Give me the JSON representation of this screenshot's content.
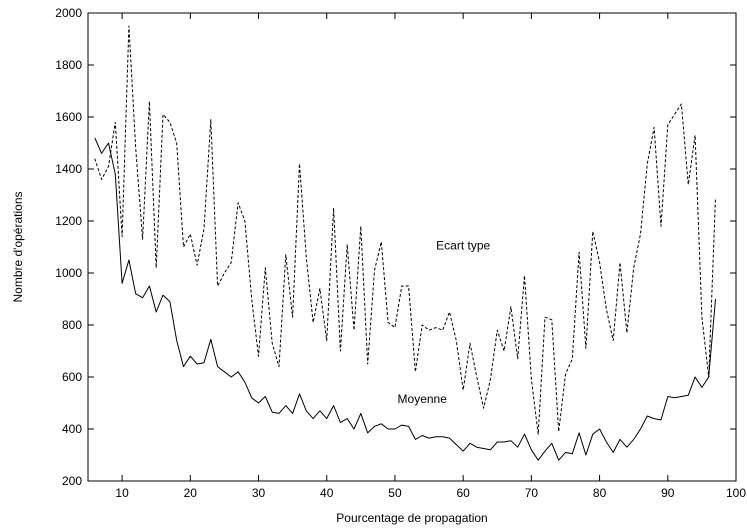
{
  "chart_data": {
    "type": "line",
    "title": "",
    "xlabel": "Pourcentage de propagation",
    "ylabel": "Nombre d'opérations",
    "xlim": [
      5,
      100
    ],
    "ylim": [
      200,
      2000
    ],
    "xticks": [
      10,
      20,
      30,
      40,
      50,
      60,
      70,
      80,
      90,
      100
    ],
    "yticks": [
      200,
      400,
      600,
      800,
      1000,
      1200,
      1400,
      1600,
      1800,
      2000
    ],
    "grid": false,
    "legend": "none",
    "x": [
      6,
      7,
      8,
      9,
      10,
      11,
      12,
      13,
      14,
      15,
      16,
      17,
      18,
      19,
      20,
      21,
      22,
      23,
      24,
      25,
      26,
      27,
      28,
      29,
      30,
      31,
      32,
      33,
      34,
      35,
      36,
      37,
      38,
      39,
      40,
      41,
      42,
      43,
      44,
      45,
      46,
      47,
      48,
      49,
      50,
      51,
      52,
      53,
      54,
      55,
      56,
      57,
      58,
      59,
      60,
      61,
      62,
      63,
      64,
      65,
      66,
      67,
      68,
      69,
      70,
      71,
      72,
      73,
      74,
      75,
      76,
      77,
      78,
      79,
      80,
      81,
      82,
      83,
      84,
      85,
      86,
      87,
      88,
      89,
      90,
      91,
      92,
      93,
      94,
      95,
      96,
      97
    ],
    "series": [
      {
        "label": "Moyenne",
        "style": "solid",
        "color": "#000000",
        "values": [
          1520,
          1460,
          1500,
          1380,
          960,
          1050,
          920,
          905,
          950,
          850,
          915,
          890,
          740,
          640,
          680,
          650,
          655,
          745,
          640,
          620,
          600,
          620,
          580,
          520,
          500,
          525,
          465,
          460,
          490,
          460,
          535,
          470,
          440,
          470,
          440,
          490,
          425,
          440,
          400,
          460,
          385,
          410,
          420,
          400,
          400,
          415,
          410,
          360,
          375,
          365,
          370,
          370,
          365,
          340,
          315,
          345,
          330,
          325,
          320,
          350,
          350,
          355,
          330,
          380,
          320,
          280,
          315,
          345,
          280,
          310,
          305,
          385,
          300,
          380,
          400,
          350,
          310,
          360,
          330,
          360,
          400,
          450,
          440,
          435,
          525,
          520,
          525,
          530,
          600,
          560,
          600,
          900
        ]
      },
      {
        "label": "Ecart type",
        "style": "dashed",
        "color": "#000000",
        "values": [
          1440,
          1360,
          1410,
          1580,
          1140,
          1950,
          1480,
          1130,
          1660,
          1020,
          1610,
          1580,
          1500,
          1100,
          1150,
          1030,
          1170,
          1590,
          950,
          1000,
          1040,
          1270,
          1200,
          900,
          680,
          1020,
          730,
          640,
          1070,
          830,
          1420,
          1060,
          810,
          940,
          740,
          1250,
          700,
          1110,
          780,
          1180,
          650,
          1010,
          1120,
          810,
          790,
          950,
          950,
          620,
          800,
          780,
          790,
          780,
          850,
          740,
          550,
          730,
          600,
          480,
          590,
          780,
          700,
          870,
          670,
          990,
          590,
          380,
          830,
          820,
          390,
          610,
          670,
          1080,
          710,
          1160,
          1040,
          860,
          740,
          1040,
          770,
          1020,
          1150,
          1420,
          1560,
          1180,
          1570,
          1610,
          1650,
          1340,
          1530,
          830,
          600,
          1290
        ]
      }
    ],
    "annotations": [
      {
        "text": "Ecart type",
        "x": 60,
        "y": 1090
      },
      {
        "text": "Moyenne",
        "x": 54,
        "y": 500
      }
    ]
  }
}
